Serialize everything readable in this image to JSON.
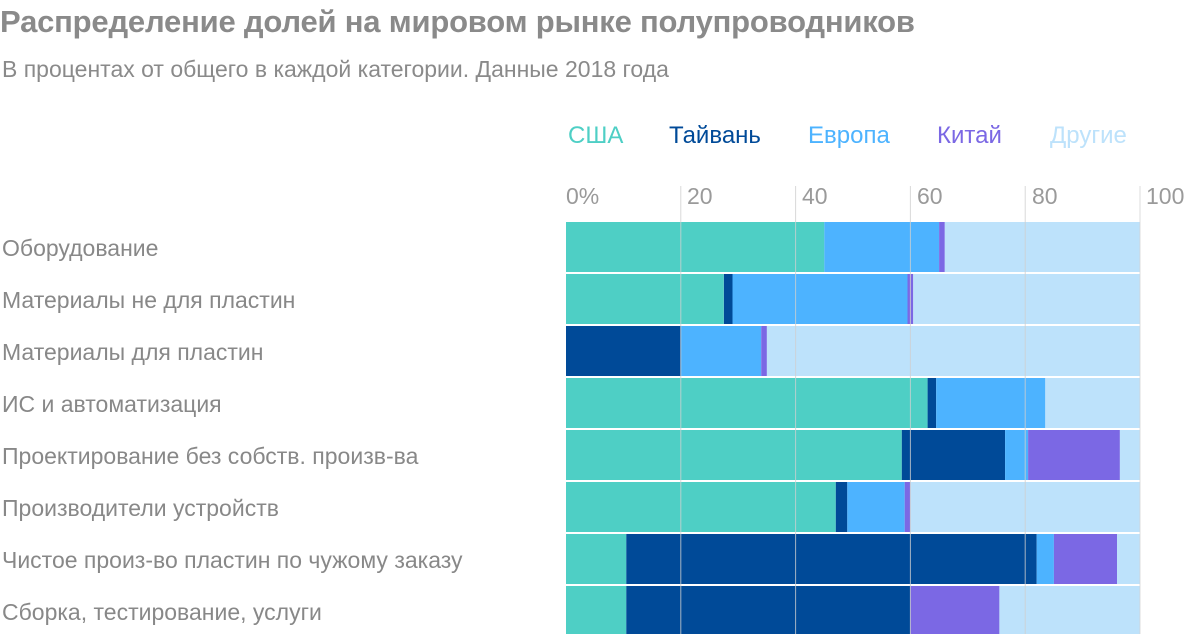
{
  "title": "Распределение долей на мировом рынке полупроводников",
  "subtitle": "В процентах от общего в каждой категории. Данные 2018 года",
  "colors": {
    "США": "#4ecfc5",
    "Тайвань": "#004a98",
    "Европа": "#4db3ff",
    "Китай": "#7b68e4",
    "Другие": "#bde2fb"
  },
  "chart_data": {
    "type": "bar",
    "orientation": "horizontal",
    "stacked": true,
    "xlim": [
      0,
      100
    ],
    "tick_labels": [
      "0%",
      "20",
      "40",
      "60",
      "80",
      "100"
    ],
    "legend_position": "top",
    "categories": [
      "Оборудование",
      "Материалы не для пластин",
      "Материалы для пластин",
      "ИС и автоматизация",
      "Проектирование без собств. произв-ва",
      "Производители устройств",
      "Чистое произ-во пластин по чужому заказу",
      "Сборка, тестирование, услуги"
    ],
    "series": [
      {
        "name": "США",
        "values": [
          45,
          27.5,
          0,
          63,
          58.5,
          47,
          10.5,
          10.5
        ]
      },
      {
        "name": "Тайвань",
        "values": [
          0,
          1.5,
          20,
          1.5,
          18,
          2,
          71.5,
          49.5
        ]
      },
      {
        "name": "Европа",
        "values": [
          20,
          30.5,
          14,
          19,
          4,
          10,
          3,
          0
        ]
      },
      {
        "name": "Китай",
        "values": [
          1,
          1,
          1,
          0,
          16,
          1,
          11,
          15.5
        ]
      },
      {
        "name": "Другие",
        "values": [
          34,
          39.5,
          65,
          16.5,
          3.5,
          40,
          4,
          24.5
        ]
      }
    ]
  }
}
